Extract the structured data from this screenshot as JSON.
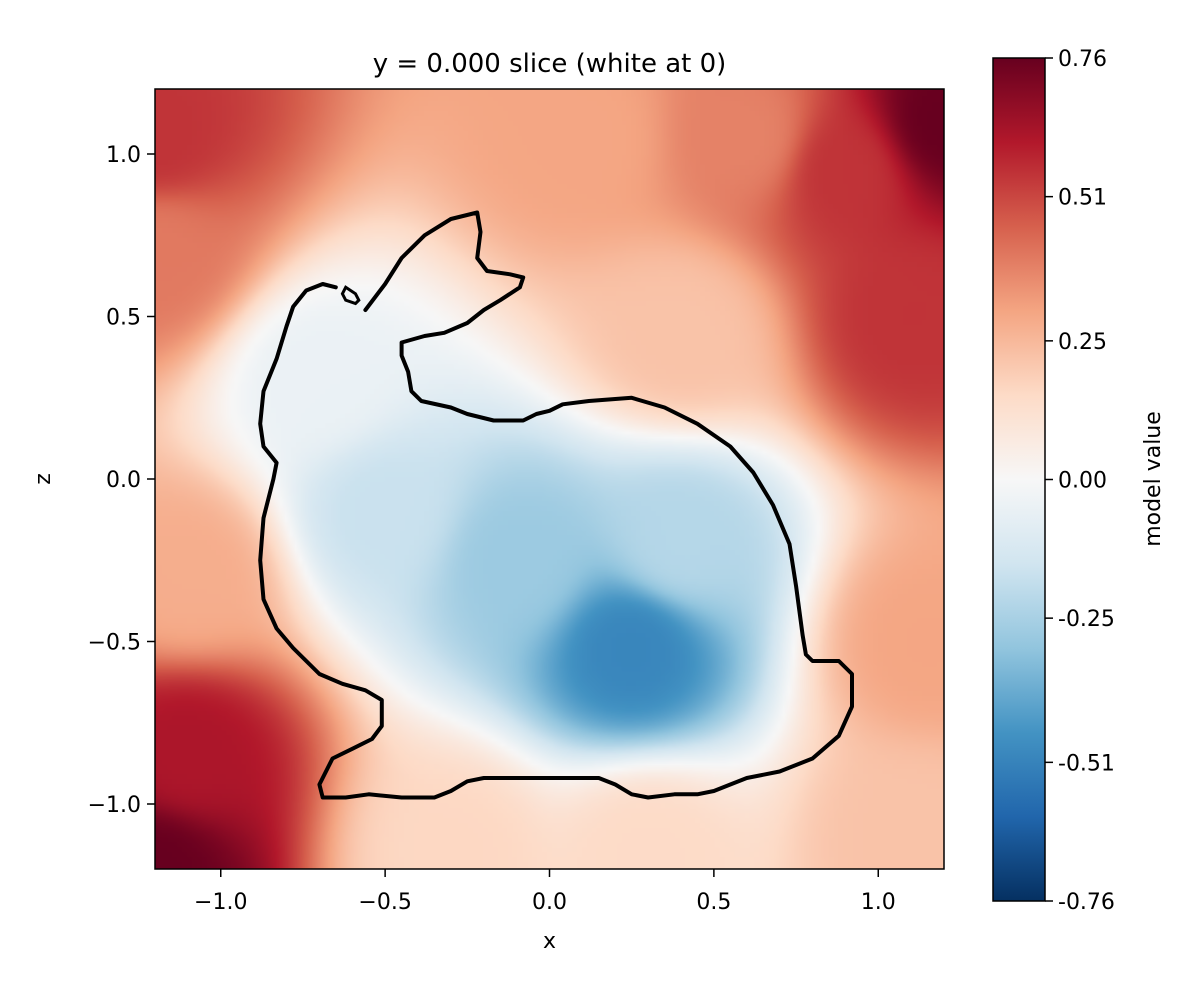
{
  "chart_data": {
    "type": "heatmap",
    "title": "y = 0.000 slice (white at 0)",
    "xlabel": "x",
    "ylabel": "z",
    "xlim": [
      -1.2,
      1.2
    ],
    "ylim": [
      -1.2,
      1.2
    ],
    "x_ticks": [
      -1.0,
      -0.5,
      0.0,
      0.5,
      1.0
    ],
    "x_tick_labels": [
      "−1.0",
      "−0.5",
      "0.0",
      "0.5",
      "1.0"
    ],
    "y_ticks": [
      -1.0,
      -0.5,
      0.0,
      0.5,
      1.0
    ],
    "y_tick_labels": [
      "−1.0",
      "−0.5",
      "0.0",
      "0.5",
      "1.0"
    ],
    "grid": false,
    "colormap": "RdBu_r",
    "colormap_stops": [
      "#053061",
      "#2166ac",
      "#4393c3",
      "#92c5de",
      "#d1e5f0",
      "#f7f7f7",
      "#fddbc7",
      "#f4a582",
      "#d6604d",
      "#b2182b",
      "#67001f"
    ],
    "colorbar": {
      "label": "model value",
      "vmin": -0.76,
      "vmax": 0.76,
      "ticks": [
        -0.76,
        -0.51,
        -0.25,
        0.0,
        0.25,
        0.51,
        0.76
      ],
      "tick_labels": [
        "-0.76",
        "-0.51",
        "-0.25",
        "0.00",
        "0.25",
        "0.51",
        "0.76"
      ]
    },
    "contour": {
      "level": 0,
      "level_label": "0",
      "color": "#000000",
      "main_path": [
        [
          -0.56,
          0.52
        ],
        [
          -0.5,
          0.6
        ],
        [
          -0.45,
          0.68
        ],
        [
          -0.38,
          0.75
        ],
        [
          -0.3,
          0.8
        ],
        [
          -0.22,
          0.82
        ],
        [
          -0.21,
          0.76
        ],
        [
          -0.22,
          0.68
        ],
        [
          -0.19,
          0.64
        ],
        [
          -0.12,
          0.63
        ],
        [
          -0.08,
          0.62
        ],
        [
          -0.09,
          0.59
        ],
        [
          -0.15,
          0.55
        ],
        [
          -0.2,
          0.52
        ],
        [
          -0.25,
          0.48
        ],
        [
          -0.32,
          0.45
        ],
        [
          -0.38,
          0.44
        ],
        [
          -0.45,
          0.42
        ],
        [
          -0.45,
          0.38
        ],
        [
          -0.43,
          0.33
        ],
        [
          -0.42,
          0.27
        ],
        [
          -0.39,
          0.24
        ],
        [
          -0.3,
          0.22
        ],
        [
          -0.25,
          0.2
        ],
        [
          -0.17,
          0.18
        ],
        [
          -0.08,
          0.18
        ],
        [
          -0.04,
          0.2
        ],
        [
          0.0,
          0.21
        ],
        [
          0.04,
          0.23
        ],
        [
          0.12,
          0.24
        ],
        [
          0.25,
          0.25
        ],
        [
          0.35,
          0.22
        ],
        [
          0.45,
          0.17
        ],
        [
          0.55,
          0.1
        ],
        [
          0.62,
          0.02
        ],
        [
          0.68,
          -0.08
        ],
        [
          0.73,
          -0.2
        ],
        [
          0.75,
          -0.33
        ],
        [
          0.77,
          -0.48
        ],
        [
          0.78,
          -0.54
        ],
        [
          0.8,
          -0.56
        ],
        [
          0.88,
          -0.56
        ],
        [
          0.92,
          -0.6
        ],
        [
          0.92,
          -0.7
        ],
        [
          0.88,
          -0.79
        ],
        [
          0.8,
          -0.86
        ],
        [
          0.7,
          -0.9
        ],
        [
          0.6,
          -0.92
        ],
        [
          0.55,
          -0.94
        ],
        [
          0.5,
          -0.96
        ],
        [
          0.45,
          -0.97
        ],
        [
          0.38,
          -0.97
        ],
        [
          0.3,
          -0.98
        ],
        [
          0.25,
          -0.97
        ],
        [
          0.2,
          -0.94
        ],
        [
          0.15,
          -0.92
        ],
        [
          0.05,
          -0.92
        ],
        [
          -0.05,
          -0.92
        ],
        [
          -0.2,
          -0.92
        ],
        [
          -0.25,
          -0.93
        ],
        [
          -0.3,
          -0.96
        ],
        [
          -0.35,
          -0.98
        ],
        [
          -0.45,
          -0.98
        ],
        [
          -0.55,
          -0.97
        ],
        [
          -0.62,
          -0.98
        ],
        [
          -0.69,
          -0.98
        ],
        [
          -0.7,
          -0.94
        ],
        [
          -0.66,
          -0.86
        ],
        [
          -0.6,
          -0.83
        ],
        [
          -0.54,
          -0.8
        ],
        [
          -0.51,
          -0.76
        ],
        [
          -0.51,
          -0.68
        ],
        [
          -0.56,
          -0.65
        ],
        [
          -0.63,
          -0.63
        ],
        [
          -0.7,
          -0.6
        ],
        [
          -0.78,
          -0.52
        ],
        [
          -0.83,
          -0.46
        ],
        [
          -0.87,
          -0.37
        ],
        [
          -0.88,
          -0.25
        ],
        [
          -0.87,
          -0.12
        ],
        [
          -0.84,
          0.0
        ],
        [
          -0.83,
          0.05
        ],
        [
          -0.87,
          0.1
        ],
        [
          -0.88,
          0.17
        ],
        [
          -0.87,
          0.27
        ],
        [
          -0.83,
          0.37
        ],
        [
          -0.8,
          0.47
        ],
        [
          -0.78,
          0.53
        ],
        [
          -0.74,
          0.58
        ],
        [
          -0.69,
          0.6
        ],
        [
          -0.65,
          0.59
        ]
      ],
      "island_path": [
        [
          -0.62,
          0.59
        ],
        [
          -0.59,
          0.57
        ],
        [
          -0.58,
          0.55
        ],
        [
          -0.59,
          0.54
        ],
        [
          -0.62,
          0.55
        ],
        [
          -0.63,
          0.57
        ],
        [
          -0.62,
          0.59
        ]
      ]
    },
    "field_features": [
      {
        "x": 1.2,
        "z": 1.1,
        "value": 0.76
      },
      {
        "x": 1.1,
        "z": 0.5,
        "value": 0.55
      },
      {
        "x": 0.9,
        "z": 0.95,
        "value": 0.55
      },
      {
        "x": 0.6,
        "z": 1.05,
        "value": 0.38
      },
      {
        "x": 0.1,
        "z": 1.05,
        "value": 0.3
      },
      {
        "x": -1.2,
        "z": 1.05,
        "value": 0.55
      },
      {
        "x": -1.2,
        "z": 0.7,
        "value": 0.4
      },
      {
        "x": -1.2,
        "z": -1.2,
        "value": 0.76
      },
      {
        "x": -1.1,
        "z": -0.85,
        "value": 0.62
      },
      {
        "x": -1.1,
        "z": -0.3,
        "value": 0.28
      },
      {
        "x": 1.15,
        "z": -0.5,
        "value": 0.3
      },
      {
        "x": 1.1,
        "z": -1.1,
        "value": 0.22
      },
      {
        "x": -0.3,
        "z": -1.15,
        "value": 0.16
      },
      {
        "x": 0.3,
        "z": -1.15,
        "value": 0.15
      },
      {
        "x": 0.4,
        "z": 0.45,
        "value": 0.22
      },
      {
        "x": 0.25,
        "z": -0.52,
        "value": -0.5
      },
      {
        "x": -0.1,
        "z": -0.25,
        "value": -0.28
      },
      {
        "x": -0.5,
        "z": -0.1,
        "value": -0.17
      },
      {
        "x": 0.4,
        "z": -0.2,
        "value": -0.22
      },
      {
        "x": -0.7,
        "z": 0.3,
        "value": -0.05
      }
    ]
  }
}
